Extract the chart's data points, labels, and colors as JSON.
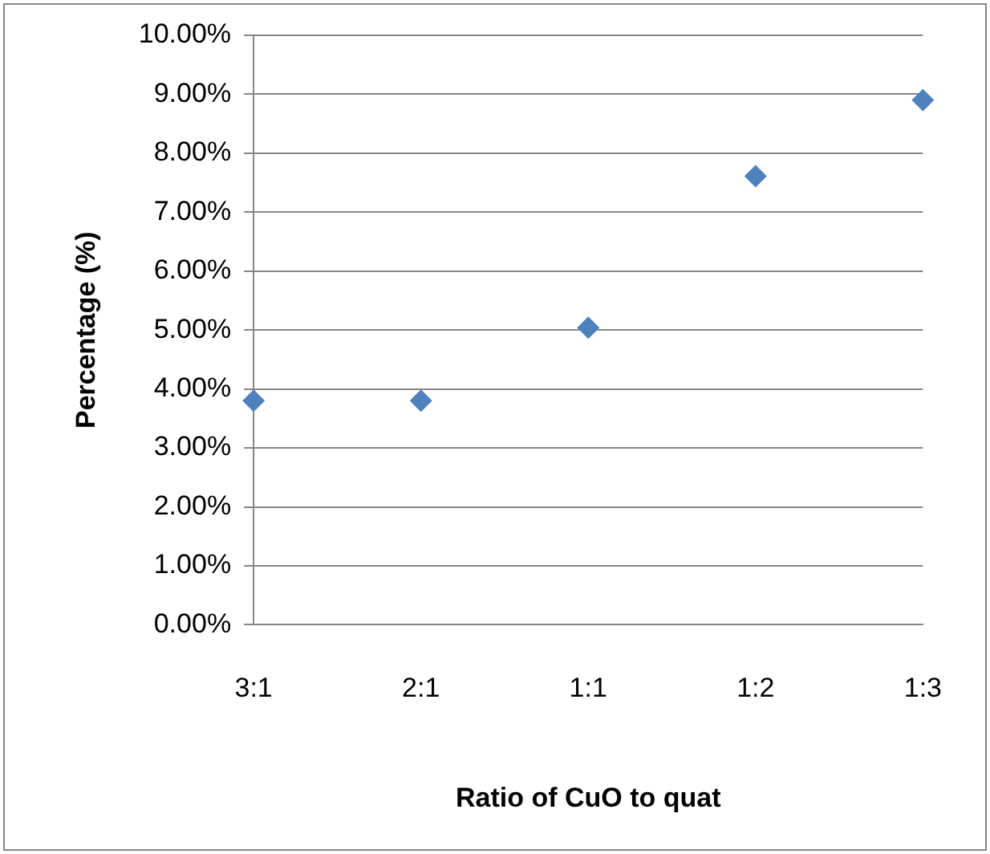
{
  "chart_data": {
    "type": "scatter",
    "xlabel": "Ratio of CuO to quat",
    "ylabel": "Percentage (%)",
    "categories": [
      "3:1",
      "2:1",
      "1:1",
      "1:2",
      "1:3"
    ],
    "series": [
      {
        "color": "#4f81bd",
        "values": [
          3.8,
          3.8,
          5.04,
          7.61,
          8.9
        ]
      }
    ],
    "ylim": [
      0,
      10
    ],
    "yticks": [
      {
        "value": 0,
        "label": "0.00%"
      },
      {
        "value": 1,
        "label": "1.00%"
      },
      {
        "value": 2,
        "label": "2.00%"
      },
      {
        "value": 3,
        "label": "3.00%"
      },
      {
        "value": 4,
        "label": "4.00%"
      },
      {
        "value": 5,
        "label": "5.00%"
      },
      {
        "value": 6,
        "label": "6.00%"
      },
      {
        "value": 7,
        "label": "7.00%"
      },
      {
        "value": 8,
        "label": "8.00%"
      },
      {
        "value": 9,
        "label": "9.00%"
      },
      {
        "value": 10,
        "label": "10.00%"
      }
    ],
    "grid": "y",
    "marker": "diamond",
    "legend": false
  }
}
